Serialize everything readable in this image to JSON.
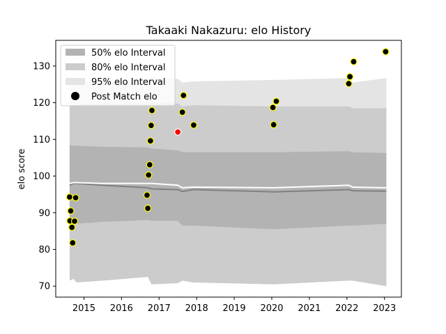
{
  "chart_data": {
    "type": "line",
    "title": "Takaaki Nakazuru: elo History",
    "xlabel": "",
    "ylabel": "elo score",
    "xlim": [
      2014.25,
      2023.45
    ],
    "ylim": [
      67,
      137
    ],
    "x_ticks": [
      2015,
      2016,
      2017,
      2018,
      2019,
      2020,
      2021,
      2022,
      2023
    ],
    "x_tick_labels": [
      "2015",
      "2016",
      "2017",
      "2018",
      "2019",
      "2020",
      "2021",
      "2022",
      "2023"
    ],
    "y_ticks": [
      70,
      80,
      90,
      100,
      110,
      120,
      130
    ],
    "y_tick_labels": [
      "70",
      "80",
      "90",
      "100",
      "110",
      "120",
      "130"
    ],
    "grid": false,
    "legend_position": "top-left",
    "legend": [
      {
        "label": "50% elo Interval",
        "kind": "band",
        "color": "#b3b3b3"
      },
      {
        "label": "80% elo Interval",
        "kind": "band",
        "color": "#cccccc"
      },
      {
        "label": "95% elo Interval",
        "kind": "band",
        "color": "#e4e4e4"
      },
      {
        "label": "Post Match elo",
        "kind": "marker",
        "color": "#000000"
      }
    ],
    "bands": {
      "x": [
        2014.62,
        2014.72,
        2014.8,
        2015.5,
        2016.7,
        2016.8,
        2017.5,
        2017.62,
        2017.9,
        2020.05,
        2022.05,
        2022.15,
        2023.05
      ],
      "ci95": {
        "upper": [
          124.5,
          125.5,
          125.5,
          125.8,
          126.3,
          127.0,
          126.5,
          125.5,
          125.8,
          126.2,
          126.7,
          125.5,
          126.7
        ],
        "lower": [
          71.5,
          72.0,
          71.0,
          71.5,
          72.5,
          70.5,
          70.8,
          71.5,
          71.0,
          70.5,
          71.5,
          71.5,
          70.0
        ]
      },
      "ci80": {
        "upper": [
          119.0,
          119.3,
          119.5,
          119.7,
          119.8,
          120.0,
          119.8,
          119.0,
          119.3,
          119.0,
          119.0,
          118.5,
          118.5
        ]
      },
      "ci50": {
        "upper": [
          108.5,
          108.3,
          108.3,
          108.0,
          107.8,
          107.5,
          107.0,
          106.5,
          106.5,
          106.5,
          106.8,
          106.5,
          106.3
        ],
        "lower": [
          86.5,
          87.0,
          87.0,
          87.5,
          88.0,
          87.8,
          87.8,
          86.5,
          86.5,
          85.5,
          86.5,
          86.5,
          87.0
        ]
      }
    },
    "lines": {
      "x": [
        2014.62,
        2014.72,
        2014.8,
        2015.5,
        2016.7,
        2016.8,
        2017.5,
        2017.62,
        2017.9,
        2020.05,
        2022.05,
        2022.15,
        2023.05
      ],
      "median": [
        97.5,
        98.0,
        98.0,
        97.5,
        96.8,
        96.5,
        96.3,
        95.8,
        96.3,
        95.7,
        96.3,
        96.0,
        95.9
      ],
      "mean": [
        98.0,
        98.2,
        98.2,
        98.0,
        98.0,
        98.0,
        97.5,
        96.8,
        97.0,
        96.8,
        97.5,
        97.0,
        96.8
      ]
    },
    "series": [
      {
        "name": "Post Match elo",
        "points": [
          {
            "x": 2014.62,
            "y": 94.3
          },
          {
            "x": 2014.65,
            "y": 90.5
          },
          {
            "x": 2014.63,
            "y": 87.8
          },
          {
            "x": 2014.68,
            "y": 86.0
          },
          {
            "x": 2014.7,
            "y": 81.8
          },
          {
            "x": 2014.75,
            "y": 87.7
          },
          {
            "x": 2014.78,
            "y": 94.1
          },
          {
            "x": 2016.68,
            "y": 94.8
          },
          {
            "x": 2016.7,
            "y": 91.2
          },
          {
            "x": 2016.72,
            "y": 100.3
          },
          {
            "x": 2016.75,
            "y": 103.1
          },
          {
            "x": 2016.77,
            "y": 109.6
          },
          {
            "x": 2016.79,
            "y": 113.8
          },
          {
            "x": 2016.81,
            "y": 117.9
          },
          {
            "x": 2017.62,
            "y": 117.4
          },
          {
            "x": 2017.65,
            "y": 122.0
          },
          {
            "x": 2017.92,
            "y": 113.9
          },
          {
            "x": 2020.03,
            "y": 118.7
          },
          {
            "x": 2020.05,
            "y": 114.0
          },
          {
            "x": 2020.12,
            "y": 120.4
          },
          {
            "x": 2022.05,
            "y": 125.2
          },
          {
            "x": 2022.08,
            "y": 127.1
          },
          {
            "x": 2022.18,
            "y": 131.2
          },
          {
            "x": 2023.03,
            "y": 133.9
          }
        ],
        "color": "#000000",
        "edge_color": "#ffff00"
      },
      {
        "name": "",
        "points": [
          {
            "x": 2017.5,
            "y": 112.0
          }
        ],
        "color": "#ff0000",
        "edge_color": "#ffffff"
      }
    ]
  }
}
